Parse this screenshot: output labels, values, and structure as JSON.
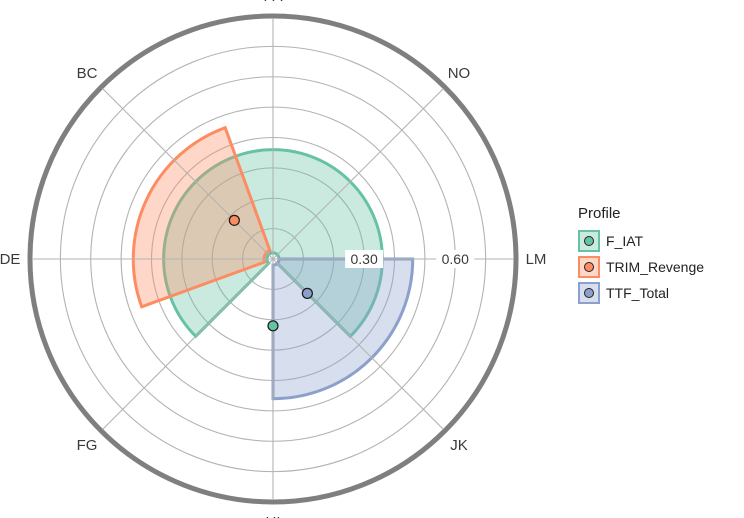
{
  "chart_data": {
    "type": "polar-bar",
    "categories": [
      "PA",
      "NO",
      "LM",
      "JK",
      "HI",
      "FG",
      "DE",
      "BC"
    ],
    "tick_values": [
      0.3,
      0.6
    ],
    "tick_labels": [
      "0.30",
      "0.60"
    ],
    "legend_title": "Profile",
    "series": [
      {
        "name": "F_IAT",
        "color": "#66c2a5",
        "bar": {
          "start_category": "FG",
          "end_category": "JK",
          "start_deg": 225,
          "end_deg": 135,
          "inner": 0.02,
          "outer": 0.36
        },
        "point": {
          "category": "HI",
          "value": 0.22
        }
      },
      {
        "name": "TRIM_Revenge",
        "color": "#fc8d62",
        "bar": {
          "start_category": "DE",
          "end_category": "PA",
          "start_deg": 250,
          "end_deg": 340,
          "inner": 0.03,
          "outer": 0.46
        },
        "point": {
          "category": "BC",
          "value": 0.18
        }
      },
      {
        "name": "TTF_Total",
        "color": "#8da0cb",
        "bar": {
          "start_category": "LM",
          "end_category": "HI",
          "start_deg": 90,
          "end_deg": 180,
          "inner": 0.02,
          "outer": 0.46
        },
        "point": {
          "category": "JK",
          "value": 0.16
        }
      }
    ]
  }
}
